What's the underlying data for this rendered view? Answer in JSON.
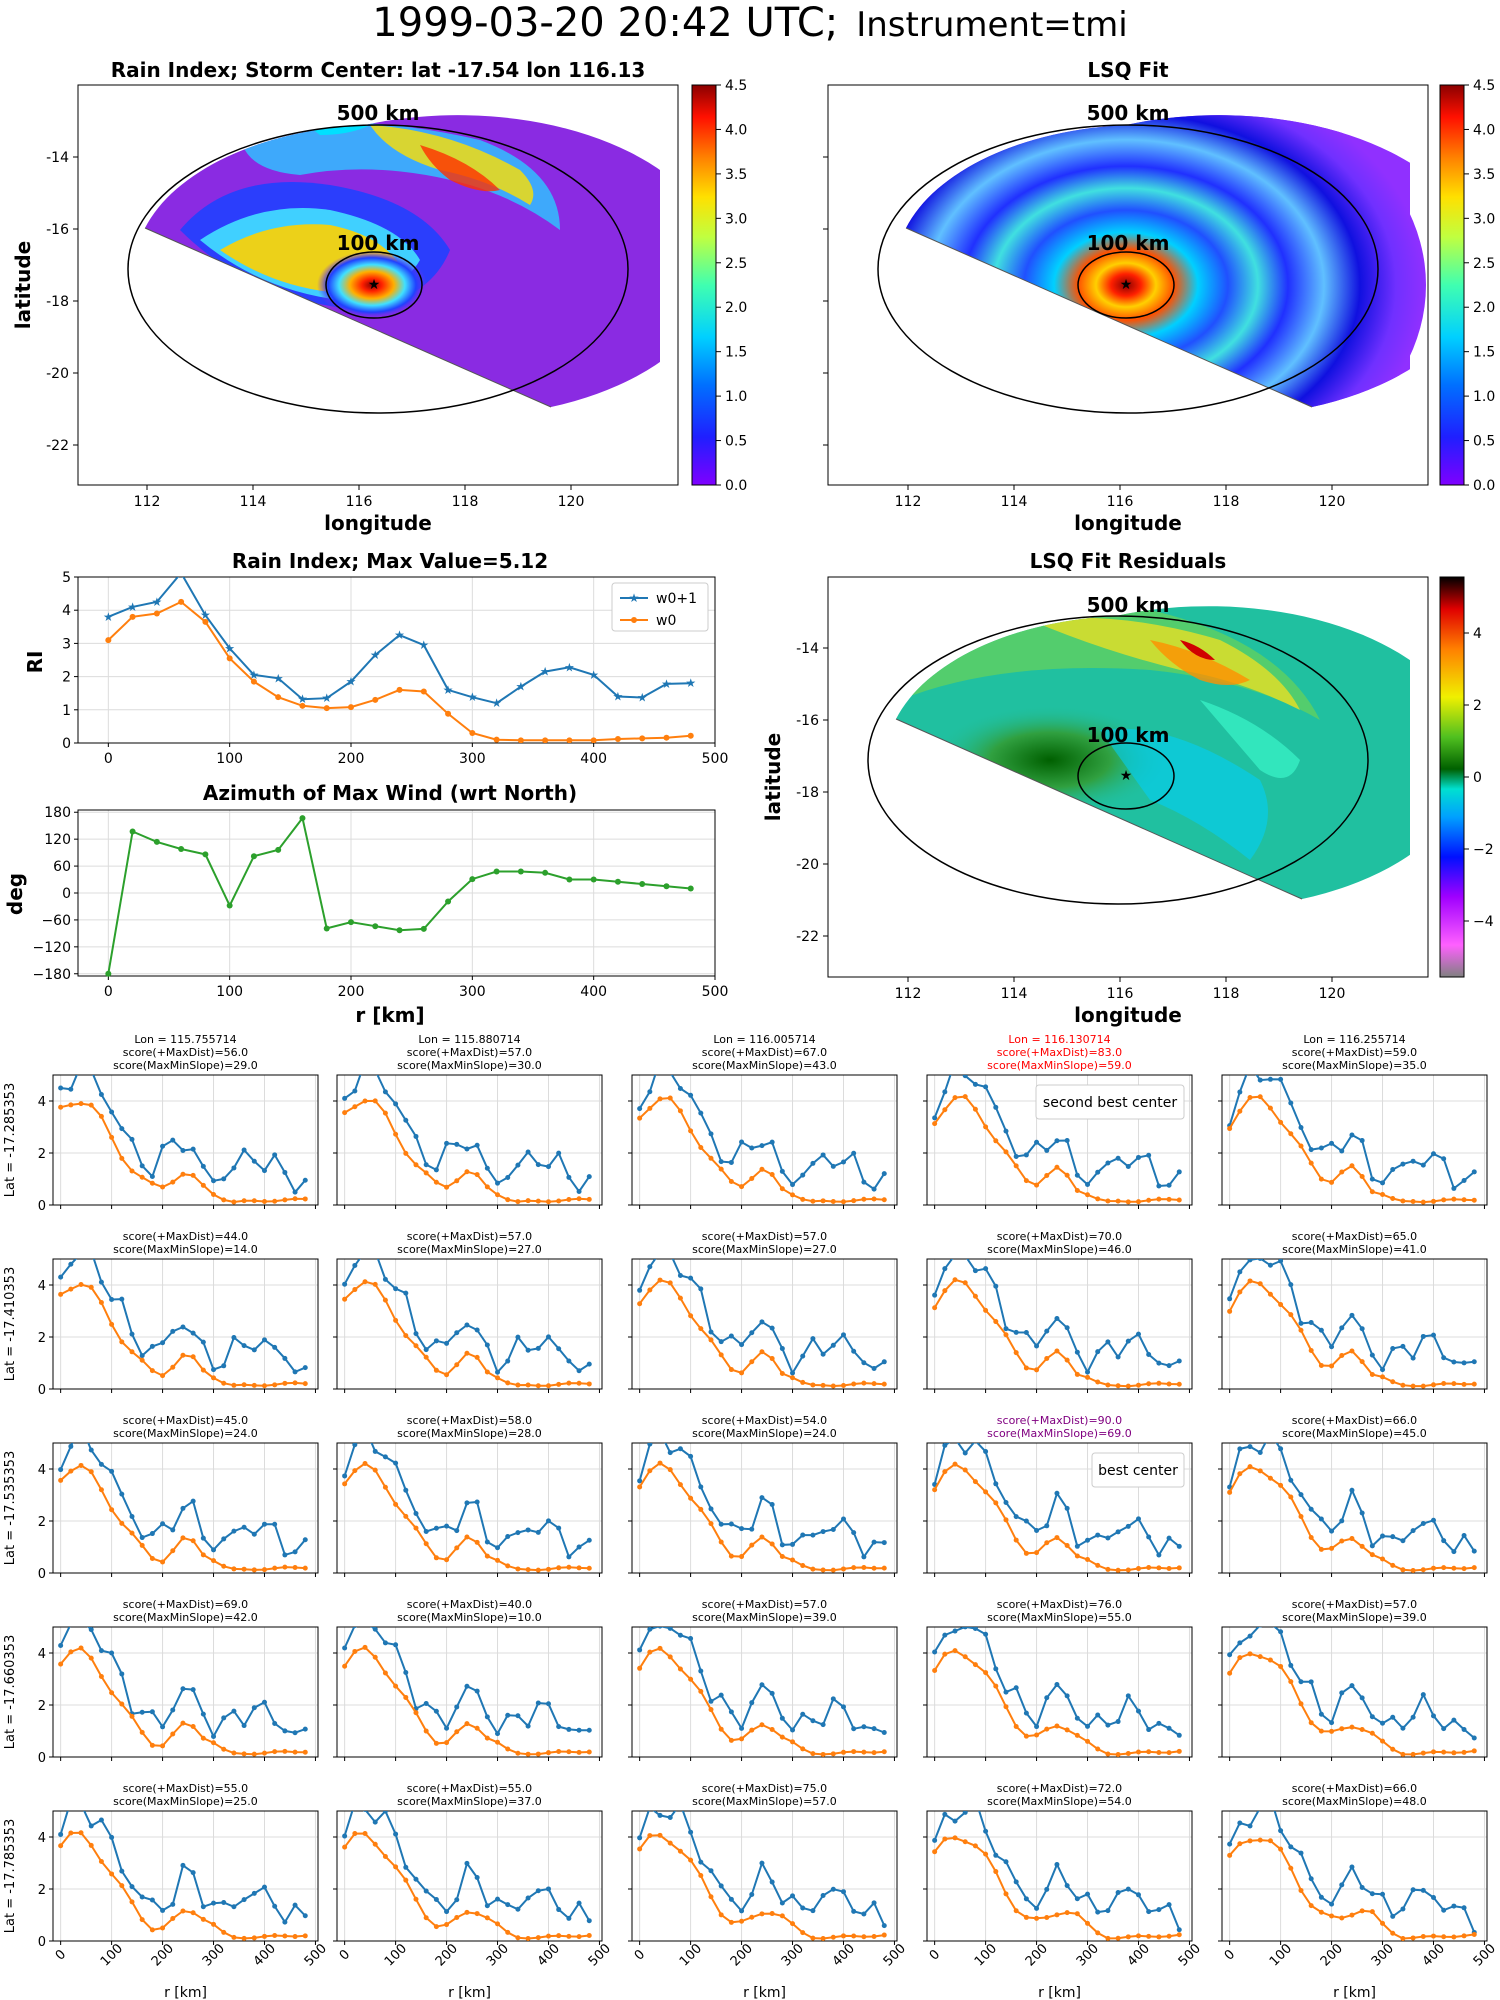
{
  "figure": {
    "title_main": "1999-03-20 20:42 UTC;",
    "title_instr": "Instrument=tmi"
  },
  "colors": {
    "w0p1": "#1f77b4",
    "w0": "#ff7f0e",
    "az": "#2ca02c",
    "best": "#800080",
    "second": "#ff0000"
  },
  "maps": {
    "rain": {
      "title": "Rain Index; Storm Center: lat -17.54 lon 116.13",
      "xlabel": "longitude",
      "ylabel": "latitude",
      "colorbar": {
        "ticks": [
          "0.0",
          "0.5",
          "1.0",
          "1.5",
          "2.0",
          "2.5",
          "3.0",
          "3.5",
          "4.0",
          "4.5"
        ],
        "colormap": "jet"
      },
      "ring_labels": [
        "500 km",
        "100 km"
      ],
      "x_ticks": [
        "112",
        "114",
        "116",
        "118",
        "120"
      ],
      "y_ticks": [
        "-14",
        "-16",
        "-18",
        "-20",
        "-22"
      ]
    },
    "lsq": {
      "title": "LSQ Fit",
      "xlabel": "longitude",
      "colorbar": {
        "ticks": [
          "0.0",
          "0.5",
          "1.0",
          "1.5",
          "2.0",
          "2.5",
          "3.0",
          "3.5",
          "4.0",
          "4.5"
        ],
        "colormap": "jet"
      },
      "ring_labels": [
        "500 km",
        "100 km"
      ],
      "x_ticks": [
        "112",
        "114",
        "116",
        "118",
        "120"
      ]
    },
    "resid": {
      "title": "LSQ Fit Residuals",
      "xlabel": "longitude",
      "ylabel": "latitude",
      "colorbar": {
        "ticks": [
          "4",
          "2",
          "0",
          "−2",
          "−4"
        ],
        "colormap": "diverging"
      },
      "ring_labels": [
        "500 km",
        "100 km"
      ],
      "x_ticks": [
        "112",
        "114",
        "116",
        "118",
        "120"
      ],
      "y_ticks": [
        "-14",
        "-16",
        "-18",
        "-20",
        "-22"
      ]
    }
  },
  "chart_data": [
    {
      "type": "line",
      "id": "rain-profile",
      "title": "Rain Index; Max Value=5.12",
      "ylabel": "RI",
      "ylim": [
        0,
        5
      ],
      "xlim": [
        -25,
        500
      ],
      "x_ticks": [
        "0",
        "100",
        "200",
        "300",
        "400",
        "500"
      ],
      "y_ticks": [
        "0",
        "1",
        "2",
        "3",
        "4",
        "5"
      ],
      "x": [
        0,
        20,
        40,
        60,
        80,
        100,
        120,
        140,
        160,
        180,
        200,
        220,
        240,
        260,
        280,
        300,
        320,
        340,
        360,
        380,
        400,
        420,
        440,
        460,
        480
      ],
      "series": [
        {
          "name": "w0+1",
          "marker": "star",
          "values": [
            3.8,
            4.1,
            4.25,
            5.12,
            3.85,
            2.85,
            2.05,
            1.95,
            1.32,
            1.35,
            1.85,
            2.65,
            3.25,
            2.95,
            1.6,
            1.38,
            1.2,
            1.7,
            2.15,
            2.28,
            2.05,
            1.4,
            1.37,
            1.78,
            1.8
          ]
        },
        {
          "name": "w0",
          "marker": "dot",
          "values": [
            3.1,
            3.8,
            3.9,
            4.25,
            3.65,
            2.55,
            1.85,
            1.38,
            1.12,
            1.05,
            1.08,
            1.3,
            1.6,
            1.55,
            0.88,
            0.3,
            0.1,
            0.08,
            0.08,
            0.08,
            0.08,
            0.12,
            0.14,
            0.16,
            0.22
          ]
        }
      ],
      "legend": "top-right",
      "grid": true
    },
    {
      "type": "line",
      "id": "azimuth",
      "title": "Azimuth of Max Wind (wrt North)",
      "ylabel": "deg",
      "xlabel": "r [km]",
      "ylim": [
        -185,
        185
      ],
      "xlim": [
        -25,
        500
      ],
      "x_ticks": [
        "0",
        "100",
        "200",
        "300",
        "400",
        "500"
      ],
      "y_ticks": [
        "180",
        "120",
        "60",
        "0",
        "−60",
        "−120",
        "−180"
      ],
      "x": [
        0,
        20,
        40,
        60,
        80,
        100,
        120,
        140,
        160,
        180,
        200,
        220,
        240,
        260,
        280,
        300,
        320,
        340,
        360,
        380,
        400,
        420,
        440,
        460,
        480
      ],
      "values": [
        -180,
        137,
        114,
        98,
        86,
        -28,
        82,
        96,
        167,
        -79,
        -65,
        -74,
        -83,
        -80,
        -19,
        31,
        48,
        48,
        45,
        30,
        30,
        25,
        20,
        15,
        10
      ],
      "grid": true
    },
    {
      "type": "line",
      "id": "candidate-grid",
      "x": [
        0,
        20,
        40,
        60,
        80,
        100,
        120,
        140,
        160,
        180,
        200,
        220,
        240,
        260,
        280,
        300,
        320,
        340,
        360,
        380,
        400,
        420,
        440,
        460,
        480
      ],
      "xlim": [
        -15,
        505
      ],
      "ylim": [
        0,
        5
      ],
      "x_ticks": [
        "0",
        "100",
        "200",
        "300",
        "400",
        "500"
      ],
      "y_ticks": [
        "0",
        "2",
        "4"
      ],
      "xlabel": "r [km]",
      "row_labels": [
        "Lat = -17.285353",
        "Lat = -17.410353",
        "Lat = -17.535353",
        "Lat = -17.660353",
        "Lat = -17.785353"
      ],
      "lon_labels": [
        "Lon = 115.755714",
        "Lon = 115.880714",
        "Lon = 116.005714",
        "Lon = 116.130714",
        "Lon = 116.255714"
      ],
      "panels": [
        [
          {
            "s1": "score(+MaxDist)=56.0",
            "s2": "score(MaxMinSlope)=29.0"
          },
          {
            "s1": "score(+MaxDist)=57.0",
            "s2": "score(MaxMinSlope)=30.0"
          },
          {
            "s1": "score(+MaxDist)=67.0",
            "s2": "score(MaxMinSlope)=43.0"
          },
          {
            "s1": "score(+MaxDist)=83.0",
            "s2": "score(MaxMinSlope)=59.0",
            "highlight": "second",
            "legend": "second best center"
          },
          {
            "s1": "score(+MaxDist)=59.0",
            "s2": "score(MaxMinSlope)=35.0"
          }
        ],
        [
          {
            "s1": "score(+MaxDist)=44.0",
            "s2": "score(MaxMinSlope)=14.0"
          },
          {
            "s1": "score(+MaxDist)=57.0",
            "s2": "score(MaxMinSlope)=27.0"
          },
          {
            "s1": "score(+MaxDist)=57.0",
            "s2": "score(MaxMinSlope)=27.0"
          },
          {
            "s1": "score(+MaxDist)=70.0",
            "s2": "score(MaxMinSlope)=46.0"
          },
          {
            "s1": "score(+MaxDist)=65.0",
            "s2": "score(MaxMinSlope)=41.0"
          }
        ],
        [
          {
            "s1": "score(+MaxDist)=45.0",
            "s2": "score(MaxMinSlope)=24.0"
          },
          {
            "s1": "score(+MaxDist)=58.0",
            "s2": "score(MaxMinSlope)=28.0"
          },
          {
            "s1": "score(+MaxDist)=54.0",
            "s2": "score(MaxMinSlope)=24.0"
          },
          {
            "s1": "score(+MaxDist)=90.0",
            "s2": "score(MaxMinSlope)=69.0",
            "highlight": "best",
            "legend": "best center"
          },
          {
            "s1": "score(+MaxDist)=66.0",
            "s2": "score(MaxMinSlope)=45.0"
          }
        ],
        [
          {
            "s1": "score(+MaxDist)=69.0",
            "s2": "score(MaxMinSlope)=42.0"
          },
          {
            "s1": "score(+MaxDist)=40.0",
            "s2": "score(MaxMinSlope)=10.0"
          },
          {
            "s1": "score(+MaxDist)=57.0",
            "s2": "score(MaxMinSlope)=39.0"
          },
          {
            "s1": "score(+MaxDist)=76.0",
            "s2": "score(MaxMinSlope)=55.0"
          },
          {
            "s1": "score(+MaxDist)=57.0",
            "s2": "score(MaxMinSlope)=39.0"
          }
        ],
        [
          {
            "s1": "score(+MaxDist)=55.0",
            "s2": "score(MaxMinSlope)=25.0"
          },
          {
            "s1": "score(+MaxDist)=55.0",
            "s2": "score(MaxMinSlope)=37.0"
          },
          {
            "s1": "score(+MaxDist)=75.0",
            "s2": "score(MaxMinSlope)=57.0"
          },
          {
            "s1": "score(+MaxDist)=72.0",
            "s2": "score(MaxMinSlope)=54.0"
          },
          {
            "s1": "score(+MaxDist)=66.0",
            "s2": "score(MaxMinSlope)=48.0"
          }
        ]
      ]
    }
  ]
}
